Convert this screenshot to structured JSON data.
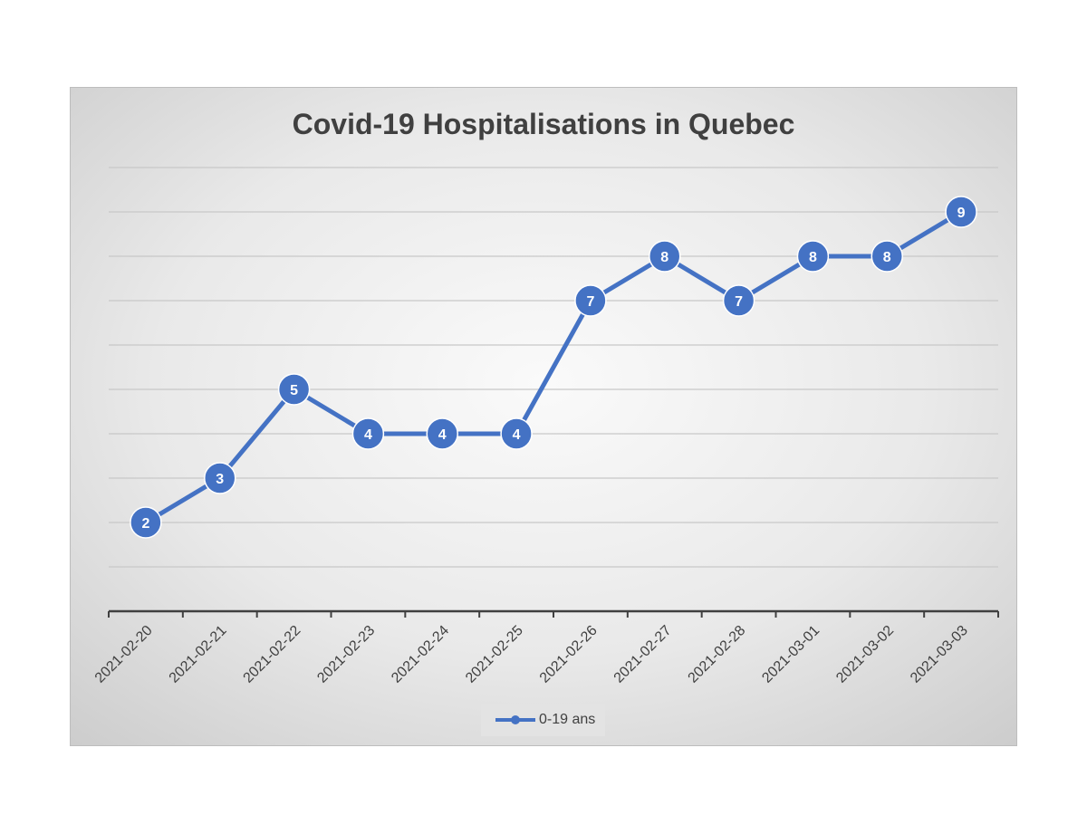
{
  "chart_data": {
    "type": "line",
    "title": "Covid-19 Hospitalisations in Quebec",
    "xlabel": "",
    "ylabel": "",
    "categories": [
      "2021-02-20",
      "2021-02-21",
      "2021-02-22",
      "2021-02-23",
      "2021-02-24",
      "2021-02-25",
      "2021-02-26",
      "2021-02-27",
      "2021-02-28",
      "2021-03-01",
      "2021-03-02",
      "2021-03-03"
    ],
    "series": [
      {
        "name": "0-19 ans",
        "values": [
          2,
          3,
          5,
          4,
          4,
          4,
          7,
          8,
          7,
          8,
          8,
          9
        ],
        "color": "#4472c4"
      }
    ],
    "ylim": [
      0,
      10
    ],
    "grid": true,
    "data_labels": true,
    "y_tick_labels_shown": false,
    "legend_position": "bottom"
  }
}
